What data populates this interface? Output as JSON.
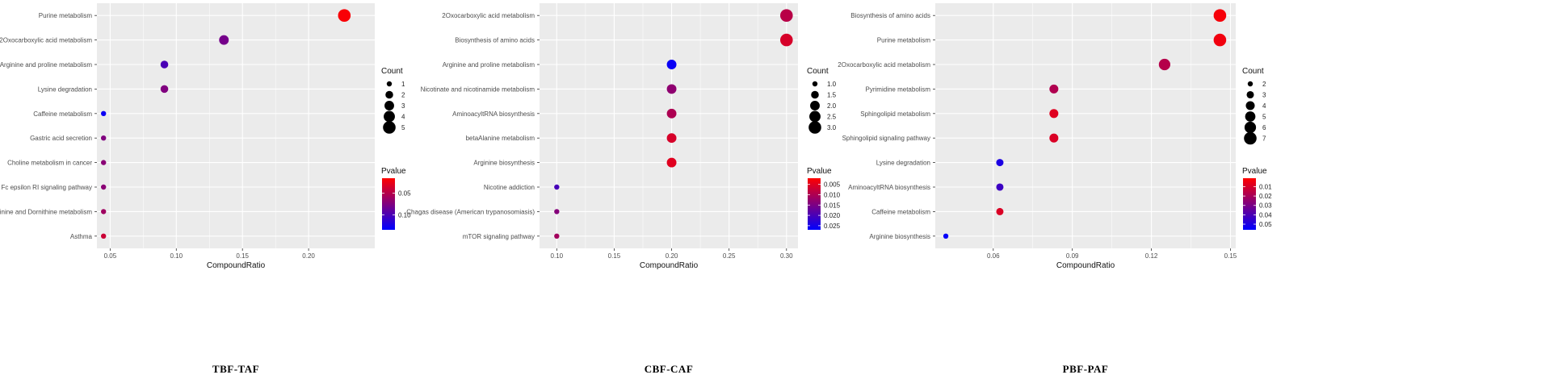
{
  "colors": {
    "panel_bg": "#ebebeb",
    "grid": "#ffffff",
    "low_p": "#ff0000",
    "high_p": "#0000ff"
  },
  "chart_data": [
    {
      "type": "scatter",
      "caption": "TBF-TAF",
      "xlabel": "CompoundRatio",
      "xlim": [
        0.04,
        0.25
      ],
      "xticks": [
        0.05,
        0.1,
        0.15,
        0.2
      ],
      "xtick_labels": [
        "0.05",
        "0.10",
        "0.15",
        "0.20"
      ],
      "categories": [
        "Purine metabolism",
        "2Oxocarboxylic acid metabolism",
        "Arginine and proline metabolism",
        "Lysine degradation",
        "Caffeine metabolism",
        "Gastric acid secretion",
        "Choline metabolism in cancer",
        "Fc epsilon RI signaling pathway",
        "DArginine and Dornithine metabolism",
        "Asthma"
      ],
      "points": [
        {
          "category": "Purine metabolism",
          "x": 0.227,
          "count": 5,
          "pvalue": 0.018
        },
        {
          "category": "2Oxocarboxylic acid metabolism",
          "x": 0.136,
          "count": 3,
          "pvalue": 0.08
        },
        {
          "category": "Arginine and proline metabolism",
          "x": 0.091,
          "count": 2,
          "pvalue": 0.1
        },
        {
          "category": "Lysine degradation",
          "x": 0.091,
          "count": 2,
          "pvalue": 0.075
        },
        {
          "category": "Caffeine metabolism",
          "x": 0.045,
          "count": 1,
          "pvalue": 0.13
        },
        {
          "category": "Gastric acid secretion",
          "x": 0.045,
          "count": 1,
          "pvalue": 0.075
        },
        {
          "category": "Choline metabolism in cancer",
          "x": 0.045,
          "count": 1,
          "pvalue": 0.07
        },
        {
          "category": "Fc epsilon RI signaling pathway",
          "x": 0.045,
          "count": 1,
          "pvalue": 0.07
        },
        {
          "category": "DArginine and Dornithine metabolism",
          "x": 0.045,
          "count": 1,
          "pvalue": 0.06
        },
        {
          "category": "Asthma",
          "x": 0.045,
          "count": 1,
          "pvalue": 0.04
        }
      ],
      "size_legend": {
        "title": "Count",
        "values": [
          1,
          2,
          3,
          4,
          5
        ],
        "labels": [
          "1",
          "2",
          "3",
          "4",
          "5"
        ],
        "range": [
          1,
          5
        ]
      },
      "color_legend": {
        "title": "Pvalue",
        "range": [
          0.015,
          0.135
        ],
        "ticks": [
          0.05,
          0.1
        ],
        "labels": [
          "0.05",
          "0.10"
        ]
      }
    },
    {
      "type": "scatter",
      "caption": "CBF-CAF",
      "xlabel": "CompoundRatio",
      "xlim": [
        0.085,
        0.31
      ],
      "xticks": [
        0.1,
        0.15,
        0.2,
        0.25,
        0.3
      ],
      "xtick_labels": [
        "0.10",
        "0.15",
        "0.20",
        "0.25",
        "0.30"
      ],
      "categories": [
        "2Oxocarboxylic acid metabolism",
        "Biosynthesis of amino acids",
        "Arginine and proline metabolism",
        "Nicotinate and nicotinamide metabolism",
        "AminoacyltRNA biosynthesis",
        "betaAlanine metabolism",
        "Arginine biosynthesis",
        "Nicotine addiction",
        "Chagas disease (American trypanosomiasis)",
        "mTOR signaling pathway"
      ],
      "points": [
        {
          "category": "2Oxocarboxylic acid metabolism",
          "x": 0.3,
          "count": 3,
          "pvalue": 0.009
        },
        {
          "category": "Biosynthesis of amino acids",
          "x": 0.3,
          "count": 3,
          "pvalue": 0.006
        },
        {
          "category": "Arginine and proline metabolism",
          "x": 0.2,
          "count": 2,
          "pvalue": 0.026
        },
        {
          "category": "Nicotinate and nicotinamide metabolism",
          "x": 0.2,
          "count": 2,
          "pvalue": 0.013
        },
        {
          "category": "AminoacyltRNA biosynthesis",
          "x": 0.2,
          "count": 2,
          "pvalue": 0.01
        },
        {
          "category": "betaAlanine metabolism",
          "x": 0.2,
          "count": 2,
          "pvalue": 0.006
        },
        {
          "category": "Arginine biosynthesis",
          "x": 0.2,
          "count": 2,
          "pvalue": 0.005
        },
        {
          "category": "Nicotine addiction",
          "x": 0.1,
          "count": 1,
          "pvalue": 0.02
        },
        {
          "category": "Chagas disease (American trypanosomiasis)",
          "x": 0.1,
          "count": 1,
          "pvalue": 0.014
        },
        {
          "category": "mTOR signaling pathway",
          "x": 0.1,
          "count": 1,
          "pvalue": 0.011
        }
      ],
      "size_legend": {
        "title": "Count",
        "values": [
          1.0,
          1.5,
          2.0,
          2.5,
          3.0
        ],
        "labels": [
          "1.0",
          "1.5",
          "2.0",
          "2.5",
          "3.0"
        ],
        "range": [
          1,
          3
        ]
      },
      "color_legend": {
        "title": "Pvalue",
        "range": [
          0.002,
          0.027
        ],
        "ticks": [
          0.005,
          0.01,
          0.015,
          0.02,
          0.025
        ],
        "labels": [
          "0.005",
          "0.010",
          "0.015",
          "0.020",
          "0.025"
        ]
      }
    },
    {
      "type": "scatter",
      "caption": "PBF-PAF",
      "xlabel": "CompoundRatio",
      "xlim": [
        0.038,
        0.152
      ],
      "xticks": [
        0.06,
        0.09,
        0.12,
        0.15
      ],
      "xtick_labels": [
        "0.06",
        "0.09",
        "0.12",
        "0.15"
      ],
      "categories": [
        "Biosynthesis of amino acids",
        "Purine metabolism",
        "2Oxocarboxylic acid metabolism",
        "Pyrimidine metabolism",
        "Sphingolipid metabolism",
        "Sphingolipid signaling pathway",
        "Lysine degradation",
        "AminoacyltRNA biosynthesis",
        "Caffeine metabolism",
        "Arginine biosynthesis"
      ],
      "points": [
        {
          "category": "Biosynthesis of amino acids",
          "x": 0.146,
          "count": 7,
          "pvalue": 0.003
        },
        {
          "category": "Purine metabolism",
          "x": 0.146,
          "count": 7,
          "pvalue": 0.004
        },
        {
          "category": "2Oxocarboxylic acid metabolism",
          "x": 0.125,
          "count": 6,
          "pvalue": 0.017
        },
        {
          "category": "Pyrimidine metabolism",
          "x": 0.083,
          "count": 4,
          "pvalue": 0.018
        },
        {
          "category": "Sphingolipid metabolism",
          "x": 0.083,
          "count": 4,
          "pvalue": 0.008
        },
        {
          "category": "Sphingolipid signaling pathway",
          "x": 0.083,
          "count": 4,
          "pvalue": 0.009
        },
        {
          "category": "Lysine degradation",
          "x": 0.0625,
          "count": 3,
          "pvalue": 0.05
        },
        {
          "category": "AminoacyltRNA biosynthesis",
          "x": 0.0625,
          "count": 3,
          "pvalue": 0.043
        },
        {
          "category": "Caffeine metabolism",
          "x": 0.0625,
          "count": 3,
          "pvalue": 0.009
        },
        {
          "category": "Arginine biosynthesis",
          "x": 0.042,
          "count": 2,
          "pvalue": 0.055
        }
      ],
      "size_legend": {
        "title": "Count",
        "values": [
          2,
          3,
          4,
          5,
          6,
          7
        ],
        "labels": [
          "2",
          "3",
          "4",
          "5",
          "6",
          "7"
        ],
        "range": [
          2,
          7
        ]
      },
      "color_legend": {
        "title": "Pvalue",
        "range": [
          0.001,
          0.056
        ],
        "ticks": [
          0.01,
          0.02,
          0.03,
          0.04,
          0.05
        ],
        "labels": [
          "0.01",
          "0.02",
          "0.03",
          "0.04",
          "0.05"
        ]
      }
    }
  ]
}
